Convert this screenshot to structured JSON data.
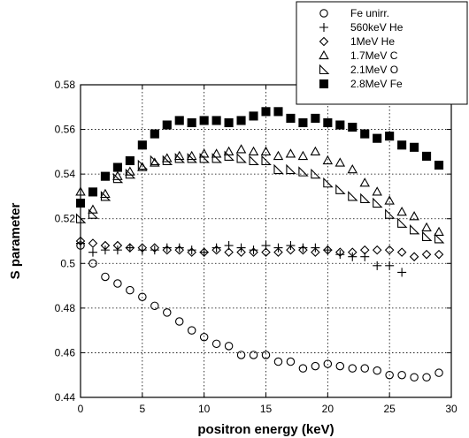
{
  "chart_data": {
    "type": "scatter",
    "xlabel": "positron energy (keV)",
    "ylabel": "S parameter",
    "xlim": [
      0,
      30
    ],
    "ylim": [
      0.44,
      0.58
    ],
    "x_ticks": [
      0,
      5,
      10,
      15,
      20,
      25,
      30
    ],
    "x_tick_labels": [
      "0",
      "5",
      "10",
      "15",
      "20",
      "25",
      "30"
    ],
    "y_ticks": [
      0.44,
      0.46,
      0.48,
      0.5,
      0.52,
      0.54,
      0.56,
      0.58
    ],
    "y_tick_labels": [
      "0.44",
      "0.46",
      "0.48",
      "0.5",
      "0.52",
      "0.54",
      "0.56",
      "0.58"
    ],
    "grid": true,
    "legend_position": "top-right",
    "series": [
      {
        "name": "Fe unirr.",
        "marker": "circle-open",
        "x": [
          0,
          1,
          2,
          3,
          4,
          5,
          6,
          7,
          8,
          9,
          10,
          11,
          12,
          13,
          14,
          15,
          16,
          17,
          18,
          19,
          20,
          21,
          22,
          23,
          24,
          25,
          26,
          27,
          28,
          29
        ],
        "y": [
          0.508,
          0.5,
          0.494,
          0.491,
          0.488,
          0.485,
          0.481,
          0.478,
          0.474,
          0.47,
          0.467,
          0.464,
          0.463,
          0.459,
          0.459,
          0.459,
          0.456,
          0.456,
          0.453,
          0.454,
          0.455,
          0.454,
          0.453,
          0.453,
          0.452,
          0.45,
          0.45,
          0.449,
          0.449,
          0.451
        ]
      },
      {
        "name": "560keV He",
        "marker": "plus",
        "x": [
          0,
          1,
          2,
          3,
          4,
          5,
          6,
          7,
          8,
          9,
          10,
          11,
          12,
          13,
          14,
          15,
          16,
          17,
          18,
          19,
          20,
          21,
          22,
          23,
          24,
          25,
          26
        ],
        "y": [
          0.509,
          0.505,
          0.506,
          0.506,
          0.507,
          0.506,
          0.506,
          0.507,
          0.507,
          0.506,
          0.505,
          0.507,
          0.508,
          0.507,
          0.506,
          0.508,
          0.507,
          0.508,
          0.507,
          0.507,
          0.506,
          0.504,
          0.503,
          0.503,
          0.499,
          0.499,
          0.496
        ]
      },
      {
        "name": "1MeV He",
        "marker": "diamond-open",
        "x": [
          0,
          1,
          2,
          3,
          4,
          5,
          6,
          7,
          8,
          9,
          10,
          11,
          12,
          13,
          14,
          15,
          16,
          17,
          18,
          19,
          20,
          21,
          22,
          23,
          24,
          25,
          26,
          27,
          28,
          29
        ],
        "y": [
          0.51,
          0.509,
          0.508,
          0.508,
          0.507,
          0.507,
          0.507,
          0.506,
          0.506,
          0.505,
          0.505,
          0.506,
          0.505,
          0.505,
          0.505,
          0.505,
          0.505,
          0.506,
          0.506,
          0.505,
          0.506,
          0.505,
          0.505,
          0.506,
          0.506,
          0.506,
          0.505,
          0.503,
          0.504,
          0.504
        ]
      },
      {
        "name": "1.7MeV C",
        "marker": "triangle-up-open",
        "x": [
          0,
          1,
          2,
          3,
          4,
          5,
          6,
          7,
          8,
          9,
          10,
          11,
          12,
          13,
          14,
          15,
          16,
          17,
          18,
          19,
          20,
          21,
          22,
          23,
          24,
          25,
          26,
          27,
          28,
          29
        ],
        "y": [
          0.532,
          0.524,
          0.531,
          0.539,
          0.541,
          0.543,
          0.545,
          0.547,
          0.548,
          0.548,
          0.549,
          0.549,
          0.55,
          0.551,
          0.55,
          0.55,
          0.548,
          0.549,
          0.548,
          0.55,
          0.546,
          0.545,
          0.542,
          0.536,
          0.532,
          0.528,
          0.523,
          0.521,
          0.516,
          0.514
        ]
      },
      {
        "name": "2.1MeV O",
        "marker": "triangle-right-open",
        "x": [
          0,
          1,
          2,
          3,
          4,
          5,
          6,
          7,
          8,
          9,
          10,
          11,
          12,
          13,
          14,
          15,
          16,
          17,
          18,
          19,
          20,
          21,
          22,
          23,
          24,
          25,
          26,
          27,
          28,
          29
        ],
        "y": [
          0.52,
          0.522,
          0.53,
          0.538,
          0.54,
          0.544,
          0.546,
          0.546,
          0.547,
          0.547,
          0.547,
          0.547,
          0.548,
          0.547,
          0.546,
          0.546,
          0.542,
          0.542,
          0.541,
          0.54,
          0.536,
          0.533,
          0.53,
          0.529,
          0.527,
          0.522,
          0.518,
          0.515,
          0.512,
          0.511
        ]
      },
      {
        "name": "2.8MeV Fe",
        "marker": "square-filled",
        "x": [
          0,
          1,
          2,
          3,
          4,
          5,
          6,
          7,
          8,
          9,
          10,
          11,
          12,
          13,
          14,
          15,
          16,
          17,
          18,
          19,
          20,
          21,
          22,
          23,
          24,
          25,
          26,
          27,
          28,
          29
        ],
        "y": [
          0.527,
          0.532,
          0.539,
          0.543,
          0.546,
          0.553,
          0.558,
          0.562,
          0.564,
          0.563,
          0.564,
          0.564,
          0.563,
          0.564,
          0.566,
          0.568,
          0.568,
          0.565,
          0.563,
          0.565,
          0.563,
          0.562,
          0.561,
          0.558,
          0.556,
          0.557,
          0.553,
          0.552,
          0.548,
          0.544
        ]
      }
    ]
  }
}
